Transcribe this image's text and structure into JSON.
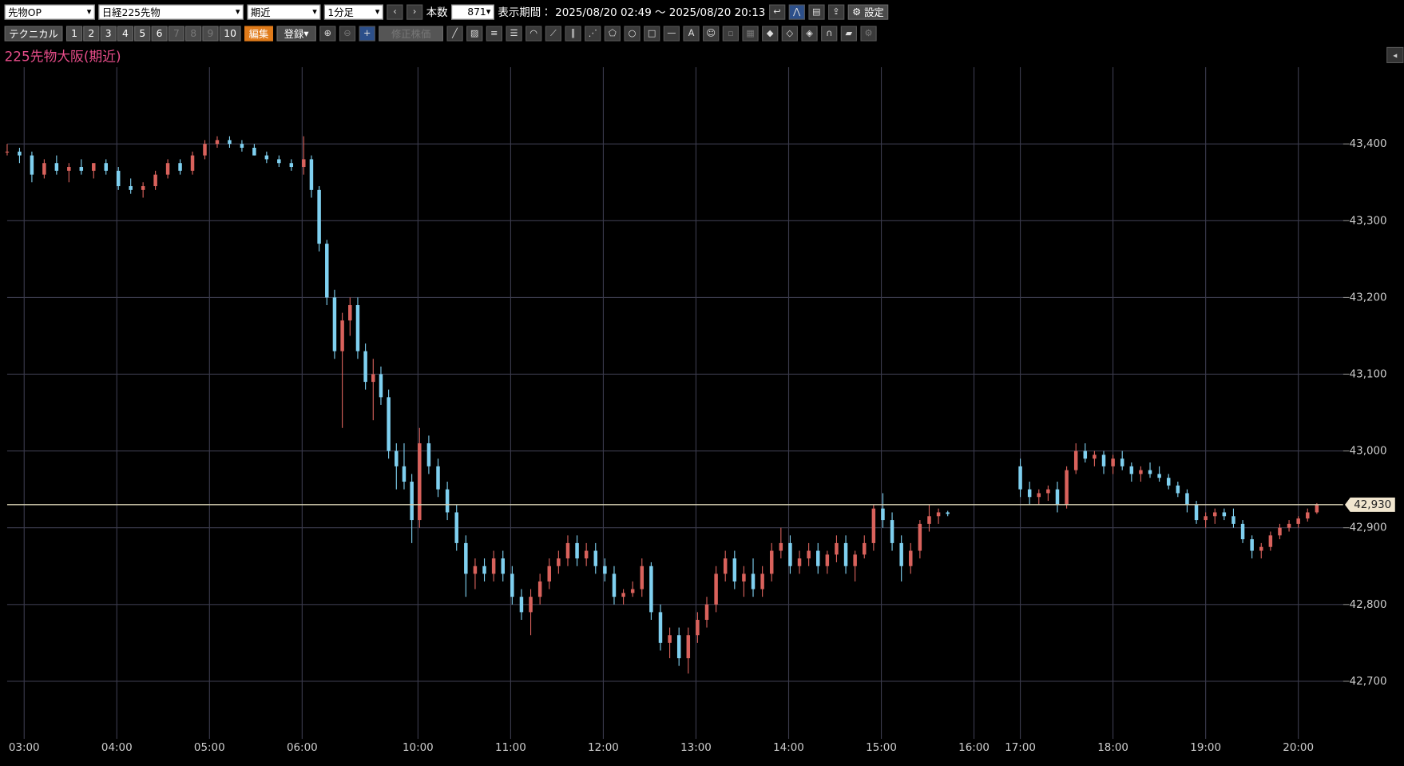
{
  "toolbar": {
    "market": "先物OP",
    "symbol": "日経225先物",
    "contract": "期近",
    "interval": "1分足",
    "bar_count_label": "本数",
    "bar_count": 871,
    "period_label": "表示期間：",
    "period": "2025/08/20 02:49 ～ 2025/08/20 20:13",
    "settings": "設定",
    "technical": "テクニカル",
    "number_buttons": [
      1,
      2,
      3,
      4,
      5,
      6,
      7,
      8,
      9,
      10
    ],
    "edit": "編集",
    "register": "登録",
    "adjusted_price": "修正株価"
  },
  "chart_data": {
    "type": "candlestick",
    "title": "225先物大阪(期近)",
    "up_color": "#d9625c",
    "down_color": "#7fd0f0",
    "grid": true,
    "xlim": [
      0,
      865
    ],
    "ylim": [
      42625,
      43500
    ],
    "xticks": [
      {
        "value": 11,
        "label": "03:00"
      },
      {
        "value": 71,
        "label": "04:00"
      },
      {
        "value": 131,
        "label": "05:00"
      },
      {
        "value": 191,
        "label": "06:00"
      },
      {
        "value": 266,
        "label": "10:00"
      },
      {
        "value": 326,
        "label": "11:00"
      },
      {
        "value": 386,
        "label": "12:00"
      },
      {
        "value": 446,
        "label": "13:00"
      },
      {
        "value": 506,
        "label": "14:00"
      },
      {
        "value": 566,
        "label": "15:00"
      },
      {
        "value": 626,
        "label": "16:00"
      },
      {
        "value": 656,
        "label": "17:00"
      },
      {
        "value": 716,
        "label": "18:00"
      },
      {
        "value": 776,
        "label": "19:00"
      },
      {
        "value": 836,
        "label": "20:00"
      }
    ],
    "yticks": [
      {
        "value": 42700,
        "label": "42,700"
      },
      {
        "value": 42800,
        "label": "42,800"
      },
      {
        "value": 42900,
        "label": "42,900"
      },
      {
        "value": 43000,
        "label": "43,000"
      },
      {
        "value": 43100,
        "label": "43,100"
      },
      {
        "value": 43200,
        "label": "43,200"
      },
      {
        "value": 43300,
        "label": "43,300"
      },
      {
        "value": 43400,
        "label": "43,400"
      }
    ],
    "last_price": {
      "value": 42930,
      "label": "42,930"
    },
    "candles": [
      [
        0,
        43390,
        43400,
        43385,
        43390
      ],
      [
        8,
        43390,
        43395,
        43375,
        43385
      ],
      [
        16,
        43385,
        43390,
        43350,
        43360
      ],
      [
        24,
        43360,
        43380,
        43355,
        43375
      ],
      [
        32,
        43375,
        43385,
        43360,
        43365
      ],
      [
        40,
        43365,
        43375,
        43350,
        43370
      ],
      [
        48,
        43370,
        43380,
        43360,
        43365
      ],
      [
        56,
        43365,
        43375,
        43355,
        43375
      ],
      [
        64,
        43375,
        43380,
        43360,
        43365
      ],
      [
        72,
        43365,
        43370,
        43340,
        43345
      ],
      [
        80,
        43345,
        43355,
        43335,
        43340
      ],
      [
        88,
        43340,
        43350,
        43330,
        43345
      ],
      [
        96,
        43345,
        43365,
        43340,
        43360
      ],
      [
        104,
        43360,
        43380,
        43355,
        43375
      ],
      [
        112,
        43375,
        43380,
        43360,
        43365
      ],
      [
        120,
        43365,
        43390,
        43360,
        43385
      ],
      [
        128,
        43385,
        43405,
        43380,
        43400
      ],
      [
        136,
        43400,
        43410,
        43395,
        43405
      ],
      [
        144,
        43405,
        43410,
        43395,
        43400
      ],
      [
        152,
        43400,
        43405,
        43390,
        43395
      ],
      [
        160,
        43395,
        43400,
        43385,
        43385
      ],
      [
        168,
        43385,
        43390,
        43375,
        43380
      ],
      [
        176,
        43380,
        43385,
        43370,
        43375
      ],
      [
        184,
        43375,
        43380,
        43365,
        43370
      ],
      [
        192,
        43370,
        43410,
        43360,
        43380
      ],
      [
        197,
        43380,
        43385,
        43330,
        43340
      ],
      [
        202,
        43340,
        43345,
        43260,
        43270
      ],
      [
        207,
        43270,
        43275,
        43190,
        43200
      ],
      [
        212,
        43200,
        43210,
        43120,
        43130
      ],
      [
        217,
        43130,
        43180,
        43030,
        43170
      ],
      [
        222,
        43170,
        43200,
        43150,
        43190
      ],
      [
        227,
        43190,
        43200,
        43120,
        43130
      ],
      [
        232,
        43130,
        43140,
        43080,
        43090
      ],
      [
        237,
        43090,
        43120,
        43040,
        43100
      ],
      [
        242,
        43100,
        43110,
        43060,
        43070
      ],
      [
        247,
        43070,
        43080,
        42990,
        43000
      ],
      [
        252,
        43000,
        43010,
        42950,
        42980
      ],
      [
        257,
        42980,
        43010,
        42950,
        42960
      ],
      [
        262,
        42960,
        42970,
        42880,
        42910
      ],
      [
        267,
        42910,
        43030,
        42900,
        43010
      ],
      [
        273,
        43010,
        43020,
        42970,
        42980
      ],
      [
        279,
        42980,
        42990,
        42940,
        42950
      ],
      [
        285,
        42950,
        42960,
        42910,
        42920
      ],
      [
        291,
        42920,
        42930,
        42870,
        42880
      ],
      [
        297,
        42880,
        42890,
        42810,
        42840
      ],
      [
        303,
        42840,
        42860,
        42820,
        42850
      ],
      [
        309,
        42850,
        42860,
        42830,
        42840
      ],
      [
        315,
        42840,
        42870,
        42830,
        42860
      ],
      [
        321,
        42860,
        42870,
        42830,
        42840
      ],
      [
        327,
        42840,
        42850,
        42800,
        42810
      ],
      [
        333,
        42810,
        42820,
        42780,
        42790
      ],
      [
        339,
        42790,
        42820,
        42760,
        42810
      ],
      [
        345,
        42810,
        42840,
        42800,
        42830
      ],
      [
        351,
        42830,
        42860,
        42820,
        42850
      ],
      [
        357,
        42850,
        42870,
        42840,
        42860
      ],
      [
        363,
        42860,
        42890,
        42850,
        42880
      ],
      [
        369,
        42880,
        42890,
        42850,
        42860
      ],
      [
        375,
        42860,
        42880,
        42850,
        42870
      ],
      [
        381,
        42870,
        42880,
        42840,
        42850
      ],
      [
        387,
        42850,
        42860,
        42830,
        42840
      ],
      [
        393,
        42840,
        42850,
        42800,
        42810
      ],
      [
        399,
        42810,
        42820,
        42800,
        42815
      ],
      [
        405,
        42815,
        42830,
        42810,
        42820
      ],
      [
        411,
        42820,
        42860,
        42810,
        42850
      ],
      [
        417,
        42850,
        42855,
        42780,
        42790
      ],
      [
        423,
        42790,
        42800,
        42740,
        42750
      ],
      [
        429,
        42750,
        42770,
        42730,
        42760
      ],
      [
        435,
        42760,
        42770,
        42720,
        42730
      ],
      [
        441,
        42730,
        42770,
        42710,
        42760
      ],
      [
        447,
        42760,
        42790,
        42750,
        42780
      ],
      [
        453,
        42780,
        42810,
        42770,
        42800
      ],
      [
        459,
        42800,
        42850,
        42790,
        42840
      ],
      [
        465,
        42840,
        42870,
        42830,
        42860
      ],
      [
        471,
        42860,
        42870,
        42820,
        42830
      ],
      [
        477,
        42830,
        42850,
        42810,
        42840
      ],
      [
        483,
        42840,
        42860,
        42810,
        42820
      ],
      [
        489,
        42820,
        42850,
        42810,
        42840
      ],
      [
        495,
        42840,
        42880,
        42830,
        42870
      ],
      [
        501,
        42870,
        42900,
        42860,
        42880
      ],
      [
        507,
        42880,
        42890,
        42840,
        42850
      ],
      [
        513,
        42850,
        42870,
        42840,
        42860
      ],
      [
        519,
        42860,
        42880,
        42850,
        42870
      ],
      [
        525,
        42870,
        42880,
        42840,
        42850
      ],
      [
        531,
        42850,
        42870,
        42840,
        42865
      ],
      [
        537,
        42865,
        42890,
        42855,
        42880
      ],
      [
        543,
        42880,
        42890,
        42840,
        42850
      ],
      [
        549,
        42850,
        42870,
        42830,
        42865
      ],
      [
        555,
        42865,
        42890,
        42860,
        42880
      ],
      [
        561,
        42880,
        42930,
        42870,
        42925
      ],
      [
        567,
        42925,
        42945,
        42900,
        42910
      ],
      [
        573,
        42910,
        42920,
        42870,
        42880
      ],
      [
        579,
        42880,
        42890,
        42830,
        42850
      ],
      [
        585,
        42850,
        42880,
        42840,
        42870
      ],
      [
        591,
        42870,
        42910,
        42860,
        42905
      ],
      [
        597,
        42905,
        42930,
        42895,
        42915
      ],
      [
        603,
        42915,
        42925,
        42905,
        42920
      ],
      [
        609,
        42920,
        42922,
        42915,
        42918
      ],
      [
        656,
        42980,
        42990,
        42940,
        42950
      ],
      [
        662,
        42950,
        42960,
        42930,
        42940
      ],
      [
        668,
        42940,
        42950,
        42930,
        42945
      ],
      [
        674,
        42945,
        42955,
        42935,
        42950
      ],
      [
        680,
        42950,
        42960,
        42920,
        42930
      ],
      [
        686,
        42930,
        42980,
        42925,
        42975
      ],
      [
        692,
        42975,
        43010,
        42970,
        43000
      ],
      [
        698,
        43000,
        43010,
        42985,
        42990
      ],
      [
        704,
        42990,
        43000,
        42980,
        42995
      ],
      [
        710,
        42995,
        43000,
        42970,
        42980
      ],
      [
        716,
        42980,
        42995,
        42970,
        42990
      ],
      [
        722,
        42990,
        43000,
        42975,
        42980
      ],
      [
        728,
        42980,
        42985,
        42960,
        42970
      ],
      [
        734,
        42970,
        42980,
        42960,
        42975
      ],
      [
        740,
        42975,
        42985,
        42965,
        42970
      ],
      [
        746,
        42970,
        42980,
        42960,
        42965
      ],
      [
        752,
        42965,
        42970,
        42950,
        42955
      ],
      [
        758,
        42955,
        42960,
        42940,
        42945
      ],
      [
        764,
        42945,
        42950,
        42920,
        42930
      ],
      [
        770,
        42930,
        42935,
        42905,
        42910
      ],
      [
        776,
        42910,
        42920,
        42900,
        42915
      ],
      [
        782,
        42915,
        42925,
        42905,
        42920
      ],
      [
        788,
        42920,
        42925,
        42910,
        42915
      ],
      [
        794,
        42915,
        42925,
        42900,
        42905
      ],
      [
        800,
        42905,
        42910,
        42880,
        42885
      ],
      [
        806,
        42885,
        42890,
        42860,
        42870
      ],
      [
        812,
        42870,
        42880,
        42860,
        42875
      ],
      [
        818,
        42875,
        42895,
        42870,
        42890
      ],
      [
        824,
        42890,
        42905,
        42885,
        42900
      ],
      [
        830,
        42900,
        42910,
        42895,
        42905
      ],
      [
        836,
        42905,
        42915,
        42900,
        42912
      ],
      [
        842,
        42912,
        42925,
        42908,
        42920
      ],
      [
        848,
        42920,
        42932,
        42918,
        42930
      ]
    ]
  }
}
